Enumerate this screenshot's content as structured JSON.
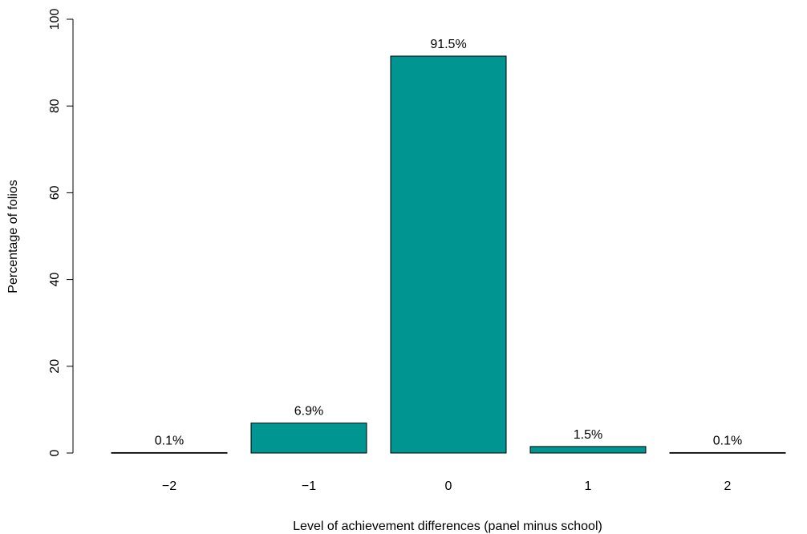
{
  "chart_data": {
    "type": "bar",
    "categories": [
      "−2",
      "−1",
      "0",
      "1",
      "2"
    ],
    "values": [
      0.1,
      6.9,
      91.5,
      1.5,
      0.1
    ],
    "data_labels": [
      "0.1%",
      "6.9%",
      "91.5%",
      "1.5%",
      "0.1%"
    ],
    "title": "",
    "xlabel": "Level of achievement differences (panel minus school)",
    "ylabel": "Percentage of folios",
    "ylim": [
      0,
      100
    ],
    "yticks": [
      0,
      20,
      40,
      60,
      80,
      100
    ],
    "ytick_labels": [
      "0",
      "20",
      "40",
      "60",
      "80",
      "100"
    ],
    "bar_color": "#009590",
    "grid": false
  }
}
